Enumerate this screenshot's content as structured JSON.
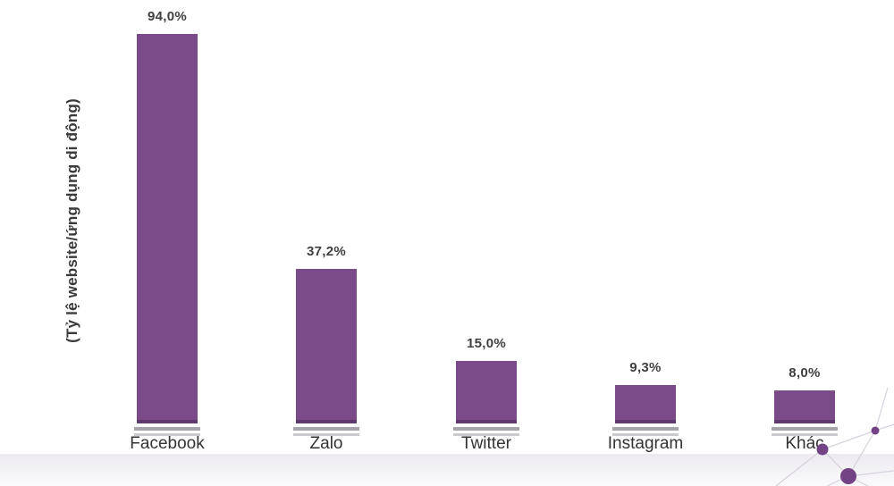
{
  "chart": {
    "ylabel": "(Tỷ lệ website/ứng dụng di động)"
  },
  "chart_data": {
    "type": "bar",
    "title": "",
    "xlabel": "",
    "ylabel": "(Tỷ lệ website/ứng dụng di động)",
    "categories": [
      "Facebook",
      "Zalo",
      "Twitter",
      "Instagram",
      "Khác"
    ],
    "values": [
      94.0,
      37.2,
      15.0,
      9.3,
      8.0
    ],
    "value_labels": [
      "94,0%",
      "37,2%",
      "15,0%",
      "9,3%",
      "8,0%"
    ],
    "ylim": [
      0,
      100
    ],
    "grid": false,
    "legend": null,
    "bar_color": "#7b4a89",
    "bar_edge_color": "#5f3a6e",
    "base_line_colors": [
      "#a6a6aa",
      "#cbcbcf"
    ],
    "value_label_color": "#3f3f3f",
    "category_label_color": "#333333",
    "background_color": "#ffffff",
    "footer_band_colors": [
      "#eceaef",
      "#faf9fb"
    ],
    "decoration": {
      "name": "network-nodes",
      "node_color": "#734386",
      "line_color": "#d8d1dd"
    }
  }
}
